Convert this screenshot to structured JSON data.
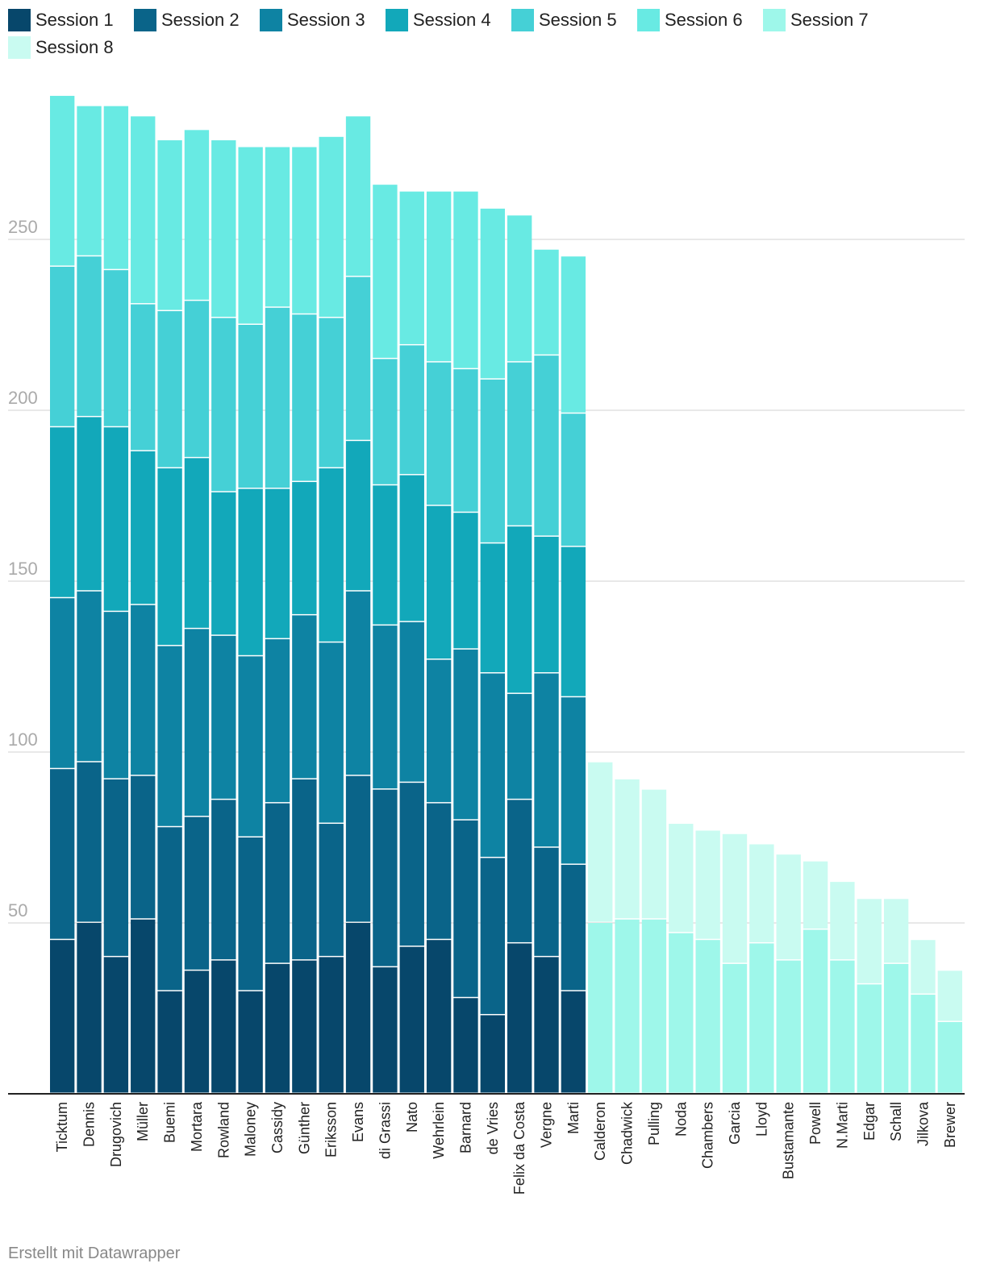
{
  "footer": "Erstellt mit Datawrapper",
  "colors": [
    "#07476b",
    "#0a6489",
    "#0e83a3",
    "#12a8ba",
    "#45d0d6",
    "#68eae3",
    "#9ef7ea",
    "#c9fbf1"
  ],
  "chart_data": {
    "type": "bar",
    "stacked": true,
    "title": "",
    "xlabel": "",
    "ylabel": "",
    "ylim": [
      0,
      290
    ],
    "yticks": [
      50,
      100,
      150,
      200,
      250
    ],
    "grid": true,
    "legend_position": "top",
    "categories": [
      "Ticktum",
      "Dennis",
      "Drugovich",
      "Müller",
      "Buemi",
      "Mortara",
      "Rowland",
      "Maloney",
      "Cassidy",
      "Günther",
      "Eriksson",
      "Evans",
      "di Grassi",
      "Nato",
      "Wehrlein",
      "Barnard",
      "de Vries",
      "Felix da Costa",
      "Vergne",
      "Marti",
      "Calderon",
      "Chadwick",
      "Pulling",
      "Noda",
      "Chambers",
      "Garcia",
      "Lloyd",
      "Bustamante",
      "Powell",
      "N.Marti",
      "Edgar",
      "Schall",
      "Jilkova",
      "Brewer"
    ],
    "series": [
      {
        "name": "Session 1",
        "values": [
          45,
          50,
          40,
          51,
          30,
          36,
          39,
          30,
          38,
          39,
          40,
          50,
          37,
          43,
          45,
          28,
          23,
          44,
          40,
          30,
          0,
          0,
          0,
          0,
          0,
          0,
          0,
          0,
          0,
          0,
          0,
          0,
          0,
          0
        ]
      },
      {
        "name": "Session 2",
        "values": [
          50,
          47,
          52,
          42,
          48,
          45,
          47,
          45,
          47,
          53,
          39,
          43,
          52,
          48,
          40,
          52,
          46,
          42,
          32,
          37,
          0,
          0,
          0,
          0,
          0,
          0,
          0,
          0,
          0,
          0,
          0,
          0,
          0,
          0
        ]
      },
      {
        "name": "Session 3",
        "values": [
          50,
          50,
          49,
          50,
          53,
          55,
          48,
          53,
          48,
          48,
          53,
          54,
          48,
          47,
          42,
          50,
          54,
          31,
          51,
          49,
          0,
          0,
          0,
          0,
          0,
          0,
          0,
          0,
          0,
          0,
          0,
          0,
          0,
          0
        ]
      },
      {
        "name": "Session 4",
        "values": [
          50,
          51,
          54,
          45,
          52,
          50,
          42,
          49,
          44,
          39,
          51,
          44,
          41,
          43,
          45,
          40,
          38,
          49,
          40,
          44,
          0,
          0,
          0,
          0,
          0,
          0,
          0,
          0,
          0,
          0,
          0,
          0,
          0,
          0
        ]
      },
      {
        "name": "Session 5",
        "values": [
          47,
          47,
          46,
          43,
          46,
          46,
          51,
          48,
          53,
          49,
          44,
          48,
          37,
          38,
          42,
          42,
          48,
          48,
          53,
          39,
          0,
          0,
          0,
          0,
          0,
          0,
          0,
          0,
          0,
          0,
          0,
          0,
          0,
          0
        ]
      },
      {
        "name": "Session 6",
        "values": [
          50,
          44,
          48,
          55,
          50,
          50,
          52,
          52,
          47,
          49,
          53,
          47,
          51,
          45,
          50,
          52,
          50,
          43,
          31,
          46,
          0,
          0,
          0,
          0,
          0,
          0,
          0,
          0,
          0,
          0,
          0,
          0,
          0,
          0
        ]
      },
      {
        "name": "Session 7",
        "values": [
          0,
          0,
          0,
          0,
          0,
          0,
          0,
          0,
          0,
          0,
          0,
          0,
          0,
          0,
          0,
          0,
          0,
          0,
          0,
          0,
          50,
          51,
          51,
          47,
          45,
          38,
          44,
          39,
          48,
          39,
          32,
          38,
          29,
          21
        ]
      },
      {
        "name": "Session 8",
        "values": [
          0,
          0,
          0,
          0,
          0,
          0,
          0,
          0,
          0,
          0,
          0,
          0,
          0,
          0,
          0,
          0,
          0,
          0,
          0,
          0,
          47,
          41,
          38,
          32,
          32,
          38,
          29,
          31,
          20,
          23,
          25,
          19,
          16,
          15
        ]
      }
    ]
  }
}
